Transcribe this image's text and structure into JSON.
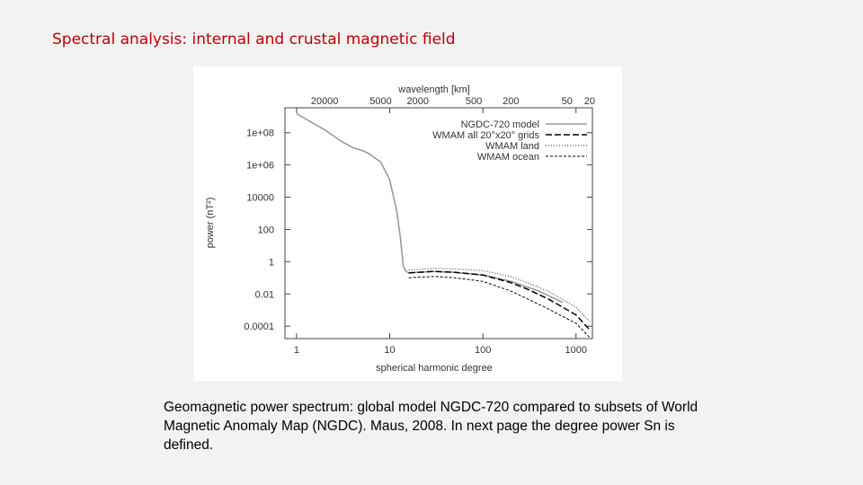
{
  "slide": {
    "title": "Spectral analysis: internal and crustal magnetic field",
    "caption": "Geomagnetic power spectrum: global model NGDC-720 compared to subsets of World Magnetic Anomaly Map (NGDC). Maus, 2008. In next page the degree power Sn is defined."
  },
  "chart_data": {
    "type": "line",
    "xlabel": "spherical harmonic degree",
    "x2label": "wavelength [km]",
    "ylabel": "power (nT²)",
    "xscale": "log",
    "yscale": "log",
    "xlim": [
      0.75,
      1500
    ],
    "ylim": [
      1.7e-05,
      3500000000
    ],
    "x_ticks": [
      {
        "value": 1,
        "label": "1"
      },
      {
        "value": 10,
        "label": "10"
      },
      {
        "value": 100,
        "label": "100"
      },
      {
        "value": 1000,
        "label": "1000"
      }
    ],
    "x2_ticks": [
      {
        "value": 2,
        "label": "20000"
      },
      {
        "value": 8,
        "label": "5000"
      },
      {
        "value": 20,
        "label": "2000"
      },
      {
        "value": 80,
        "label": "500"
      },
      {
        "value": 200,
        "label": "200"
      },
      {
        "value": 800,
        "label": "50"
      },
      {
        "value": 1400,
        "label": "20"
      }
    ],
    "y_ticks": [
      {
        "value": 100000000,
        "label": "1e+08"
      },
      {
        "value": 1000000,
        "label": "1e+06"
      },
      {
        "value": 10000,
        "label": "10000"
      },
      {
        "value": 100,
        "label": "100"
      },
      {
        "value": 1,
        "label": "1"
      },
      {
        "value": 0.01,
        "label": "0.01"
      },
      {
        "value": 0.0001,
        "label": "0.0001"
      }
    ],
    "grid": false,
    "legend_position": "top-right",
    "series": [
      {
        "name": "NGDC-720 model",
        "color": "#9a9a9a",
        "dash": "solid",
        "x": [
          1,
          2,
          3,
          4,
          5,
          6,
          8,
          10,
          12,
          13,
          14,
          15,
          16,
          20,
          30,
          50,
          100,
          200,
          400,
          720
        ],
        "y": [
          1500000000,
          150000000,
          30000000,
          12000000,
          8000000,
          5000000,
          1500000,
          120000,
          1000,
          30,
          0.5,
          0.25,
          0.2,
          0.22,
          0.25,
          0.22,
          0.15,
          0.06,
          0.015,
          0.003
        ]
      },
      {
        "name": "WMAM all 20°x20° grids",
        "color": "#000000",
        "dash": "long",
        "x": [
          16,
          20,
          30,
          50,
          100,
          200,
          300,
          500,
          1000,
          1400
        ],
        "y": [
          0.2,
          0.22,
          0.25,
          0.22,
          0.15,
          0.05,
          0.02,
          0.005,
          0.0005,
          6e-05
        ]
      },
      {
        "name": "WMAM land",
        "color": "#222222",
        "dash": "dotted",
        "x": [
          16,
          20,
          30,
          50,
          100,
          200,
          300,
          500,
          1000,
          1400
        ],
        "y": [
          0.3,
          0.33,
          0.38,
          0.35,
          0.28,
          0.12,
          0.05,
          0.015,
          0.0015,
          0.0002
        ]
      },
      {
        "name": "WMAM ocean",
        "color": "#000000",
        "dash": "short",
        "x": [
          16,
          20,
          30,
          50,
          100,
          200,
          300,
          500,
          1000,
          1400
        ],
        "y": [
          0.1,
          0.11,
          0.12,
          0.1,
          0.06,
          0.015,
          0.005,
          0.0012,
          0.00015,
          2e-05
        ]
      }
    ]
  }
}
